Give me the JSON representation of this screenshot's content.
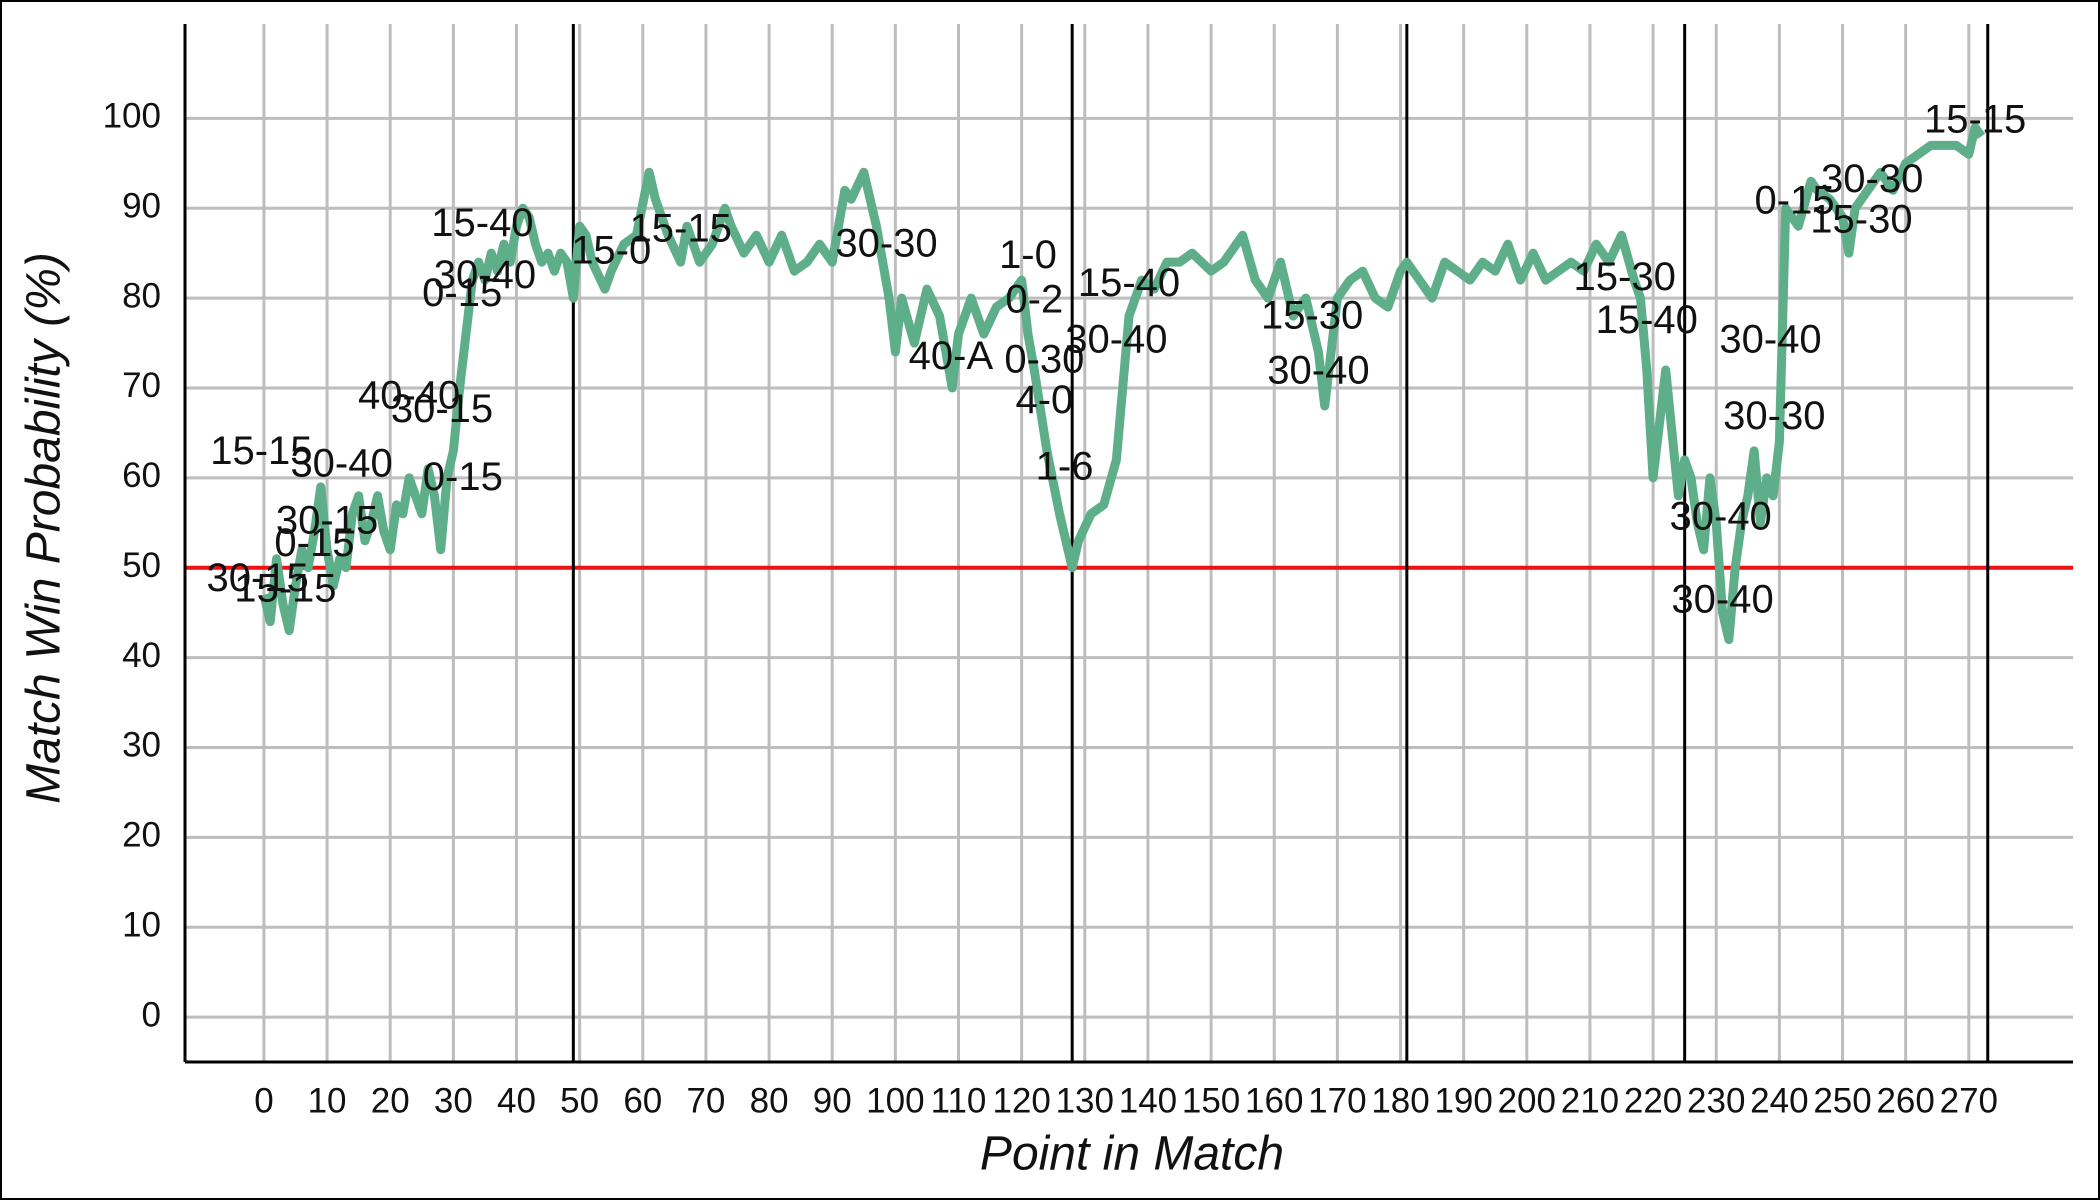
{
  "chart_data": {
    "type": "line",
    "xlabel": "Point in Match",
    "ylabel": "Match Win Probability (%)",
    "x": [
      0,
      1,
      2,
      3,
      4,
      5,
      6,
      7,
      8,
      9,
      10,
      11,
      12,
      13,
      14,
      15,
      16,
      17,
      18,
      19,
      20,
      21,
      22,
      23,
      24,
      25,
      26,
      27,
      28,
      29,
      30,
      31,
      32,
      33,
      34,
      35,
      36,
      37,
      38,
      39,
      40,
      41,
      42,
      43,
      44,
      45,
      46,
      47,
      48,
      49,
      50,
      51,
      52,
      54,
      55,
      57,
      59,
      61,
      62,
      64,
      66,
      67,
      69,
      71,
      73,
      74,
      76,
      78,
      80,
      82,
      84,
      86,
      88,
      90,
      92,
      93,
      95,
      97,
      99,
      100,
      101,
      103,
      105,
      107,
      109,
      110,
      112,
      114,
      116,
      118,
      120,
      121,
      122,
      124,
      126,
      128,
      129,
      131,
      133,
      135,
      136,
      137,
      139,
      141,
      143,
      145,
      147,
      150,
      152,
      155,
      157,
      159,
      161,
      163,
      165,
      167,
      168,
      170,
      172,
      174,
      176,
      178,
      180,
      181,
      183,
      185,
      187,
      189,
      191,
      193,
      195,
      197,
      199,
      201,
      203,
      205,
      207,
      209,
      211,
      213,
      215,
      217,
      218,
      219,
      220,
      221,
      222,
      223,
      224,
      225,
      226,
      227,
      228,
      229,
      230,
      231,
      232,
      233,
      234,
      235,
      236,
      237,
      238,
      239,
      240,
      241,
      243,
      245,
      246,
      248,
      250,
      251,
      252,
      254,
      256,
      258,
      260,
      262,
      264,
      266,
      268,
      270,
      271,
      272
    ],
    "series": [
      {
        "name": "Match Win Probability",
        "color": "#5fae8a",
        "values": [
          47,
          44,
          51,
          46,
          43,
          48,
          52,
          50,
          54,
          59,
          52,
          48,
          51,
          50,
          56,
          58,
          53,
          55,
          58,
          54,
          52,
          57,
          56,
          60,
          58,
          56,
          61,
          58,
          52,
          60,
          63,
          70,
          76,
          82,
          84,
          82,
          85,
          83,
          86,
          84,
          88,
          90,
          89,
          86,
          84,
          85,
          83,
          85,
          84,
          80,
          88,
          87,
          84,
          81,
          83,
          86,
          87,
          94,
          91,
          87,
          84,
          88,
          84,
          86,
          90,
          88,
          85,
          87,
          84,
          87,
          83,
          84,
          86,
          84,
          92,
          91,
          94,
          88,
          80,
          74,
          80,
          75,
          81,
          78,
          70,
          76,
          80,
          76,
          79,
          80,
          82,
          76,
          72,
          63,
          56,
          50,
          53,
          56,
          57,
          62,
          70,
          78,
          82,
          81,
          84,
          84,
          85,
          83,
          84,
          87,
          82,
          80,
          84,
          78,
          80,
          74,
          68,
          80,
          82,
          83,
          80,
          79,
          83,
          84,
          82,
          80,
          84,
          83,
          82,
          84,
          83,
          86,
          82,
          85,
          82,
          83,
          84,
          83,
          86,
          84,
          87,
          82,
          80,
          72,
          60,
          66,
          72,
          65,
          58,
          62,
          60,
          55,
          52,
          60,
          55,
          45,
          42,
          50,
          55,
          58,
          63,
          55,
          60,
          58,
          64,
          90,
          88,
          93,
          92,
          91,
          89,
          85,
          90,
          92,
          94,
          92,
          95,
          96,
          97,
          97,
          97,
          96,
          99,
          98
        ]
      }
    ],
    "annotations": [
      {
        "text": "30-15",
        "x": -1,
        "y": 48.6
      },
      {
        "text": "15-15",
        "x": 3.4,
        "y": 47.4
      },
      {
        "text": "15-15",
        "x": -0.4,
        "y": 62.7
      },
      {
        "text": "30-40",
        "x": 12.3,
        "y": 61.3
      },
      {
        "text": "30-15",
        "x": 10,
        "y": 55
      },
      {
        "text": "0-15",
        "x": 8,
        "y": 52.5
      },
      {
        "text": "40-40",
        "x": 23,
        "y": 68.9
      },
      {
        "text": "30-15",
        "x": 28.2,
        "y": 67.4
      },
      {
        "text": "0-15",
        "x": 31.5,
        "y": 59.8
      },
      {
        "text": "15-40",
        "x": 34.6,
        "y": 88.1
      },
      {
        "text": "30-40",
        "x": 35,
        "y": 82.3
      },
      {
        "text": "0-15",
        "x": 31.4,
        "y": 80.3
      },
      {
        "text": "15-0",
        "x": 55,
        "y": 85
      },
      {
        "text": "15-15",
        "x": 66,
        "y": 87.5
      },
      {
        "text": "30-30",
        "x": 98.6,
        "y": 85.8
      },
      {
        "text": "40-A",
        "x": 108.8,
        "y": 73.3
      },
      {
        "text": "1-0",
        "x": 121,
        "y": 84.5
      },
      {
        "text": "0-2",
        "x": 122,
        "y": 79.6
      },
      {
        "text": "15-40",
        "x": 137,
        "y": 81.4
      },
      {
        "text": "30-40",
        "x": 135,
        "y": 75.1
      },
      {
        "text": "0-30",
        "x": 123.6,
        "y": 72.9
      },
      {
        "text": "4-0",
        "x": 123.6,
        "y": 68.4
      },
      {
        "text": "1-6",
        "x": 126.8,
        "y": 61
      },
      {
        "text": "15-30",
        "x": 166,
        "y": 77.8
      },
      {
        "text": "30-40",
        "x": 167,
        "y": 71.7
      },
      {
        "text": "15-30",
        "x": 215.5,
        "y": 82.1
      },
      {
        "text": "15-40",
        "x": 219,
        "y": 77.3
      },
      {
        "text": "30-40",
        "x": 238.6,
        "y": 75.1
      },
      {
        "text": "30-30",
        "x": 239.2,
        "y": 66.6
      },
      {
        "text": "30-40",
        "x": 230.7,
        "y": 55.4
      },
      {
        "text": "30-40",
        "x": 231,
        "y": 46.2
      },
      {
        "text": "0-15",
        "x": 242.4,
        "y": 90.6
      },
      {
        "text": "30-30",
        "x": 254.7,
        "y": 93
      },
      {
        "text": "15-30",
        "x": 253,
        "y": 88.5
      },
      {
        "text": "15-15",
        "x": 271,
        "y": 99.6
      }
    ],
    "hline": {
      "value": 50,
      "color": "#ee1111"
    },
    "vlines": [
      49,
      128,
      181,
      225,
      273
    ],
    "xlim": [
      -12.5,
      286.5
    ],
    "ylim": [
      -5,
      110.5
    ],
    "xticks": [
      0,
      10,
      20,
      30,
      40,
      50,
      60,
      70,
      80,
      90,
      100,
      110,
      120,
      130,
      140,
      150,
      160,
      170,
      180,
      190,
      200,
      210,
      220,
      230,
      240,
      250,
      260,
      270
    ],
    "yticks": [
      0,
      10,
      20,
      30,
      40,
      50,
      60,
      70,
      80,
      90,
      100
    ],
    "grid": true
  }
}
